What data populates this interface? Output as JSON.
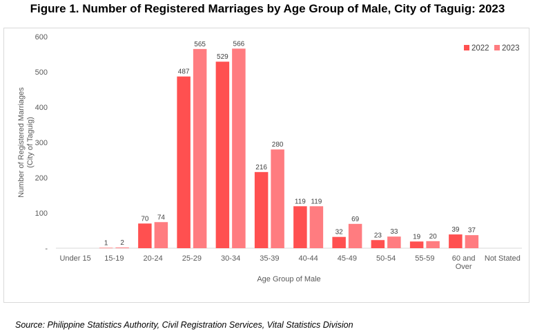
{
  "title": "Figure 1.  Number of Registered Marriages by Age Group of Male, City of Taguig: 2023",
  "source": "Source: Philippine Statistics Authority, Civil Registration Services, Vital Statistics Division",
  "chart_data": {
    "type": "bar",
    "categories": [
      [
        "Under 15"
      ],
      [
        "15-19"
      ],
      [
        "20-24"
      ],
      [
        "25-29"
      ],
      [
        "30-34"
      ],
      [
        "35-39"
      ],
      [
        "40-44"
      ],
      [
        "45-49"
      ],
      [
        "50-54"
      ],
      [
        "55-59"
      ],
      [
        "60 and",
        "Over"
      ],
      [
        "Not Stated"
      ]
    ],
    "series": [
      {
        "name": "2022",
        "color": "#ff5050",
        "values": [
          null,
          1,
          70,
          487,
          529,
          216,
          119,
          32,
          23,
          19,
          39,
          null
        ]
      },
      {
        "name": "2023",
        "color": "#ff7c80",
        "values": [
          null,
          2,
          74,
          565,
          566,
          280,
          119,
          69,
          33,
          20,
          37,
          null
        ]
      }
    ],
    "xlabel": "Age Group of Male",
    "ylabel": [
      "Number of Registered Marriages",
      "(City of Taguig)"
    ],
    "ylim": [
      0,
      600
    ],
    "yticks": [
      0,
      100,
      200,
      300,
      400,
      500,
      600
    ],
    "ytick_labels": [
      "-",
      "100",
      "200",
      "300",
      "400",
      "500",
      "600"
    ],
    "grid": false,
    "legend_position": "top-right"
  }
}
